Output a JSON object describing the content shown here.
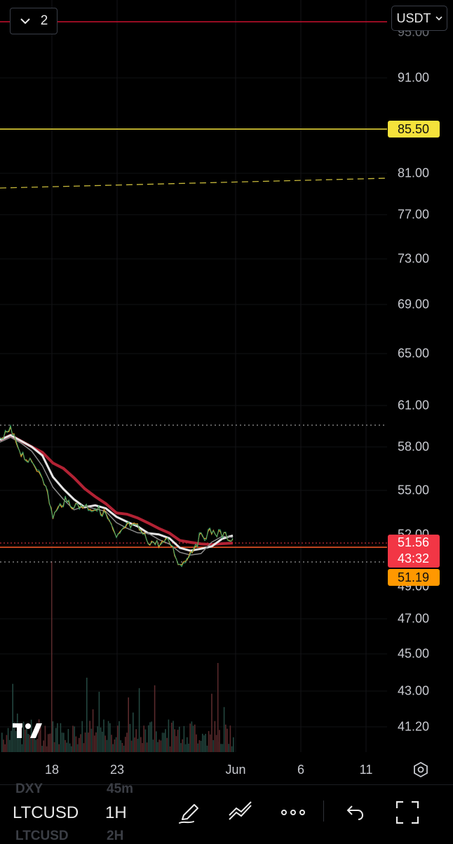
{
  "header": {
    "layout_count": "2",
    "currency": "USDT",
    "partial_top_label": "95.00"
  },
  "price_axis": {
    "labels": [
      "91.00",
      "81.00",
      "77.00",
      "73.00",
      "69.00",
      "65.00",
      "61.00",
      "58.00",
      "55.00",
      "47.00",
      "45.00",
      "43.00",
      "41.20"
    ],
    "hidden_labels": [
      "52.00",
      "49.00"
    ]
  },
  "price_tags": {
    "alert_level": "85.50",
    "current_price": "51.56",
    "countdown": "43:32",
    "orange_level": "51.19"
  },
  "time_axis": {
    "labels": [
      "18",
      "23",
      "Jun",
      "6",
      "11"
    ]
  },
  "toolbar": {
    "symbol": "LTCUSD",
    "interval": "1H",
    "ghost_top_symbol": "DXY",
    "ghost_top_interval": "45m",
    "ghost_bottom_symbol": "LTCUSD",
    "ghost_bottom_interval": "2H"
  },
  "colors": {
    "background": "#000000",
    "red_line": "#c8102e",
    "alert_yellow": "#f5e23b",
    "current_red": "#f23645",
    "orange": "#ff9800",
    "ma_white": "#e6e6e6",
    "ma_red": "#b22234"
  },
  "icons": [
    "chevron-down-icon",
    "settings-icon",
    "draw-icon",
    "trendline-icon",
    "more-icon",
    "undo-icon",
    "fullscreen-icon",
    "tradingview-logo-icon"
  ],
  "chart_data": {
    "type": "line",
    "title": "",
    "x_ticks": [
      "18",
      "23",
      "Jun",
      "6",
      "11"
    ],
    "y_range": [
      40,
      96
    ],
    "levels": {
      "alert": 85.5,
      "last": 51.56,
      "orange": 51.19
    },
    "series": [
      {
        "values": [
          58.5,
          59.2,
          57.6,
          56.8,
          56.1,
          53.3,
          54.3,
          54.0,
          54.0,
          53.8,
          53.5,
          51.8,
          52.7,
          52.6,
          51.7,
          51.5,
          51.7,
          50.2,
          51.0,
          52.0,
          52.3,
          52.1,
          51.8
        ]
      }
    ]
  }
}
